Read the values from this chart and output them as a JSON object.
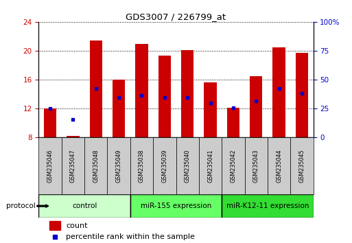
{
  "title": "GDS3007 / 226799_at",
  "samples": [
    "GSM235046",
    "GSM235047",
    "GSM235048",
    "GSM235049",
    "GSM235038",
    "GSM235039",
    "GSM235040",
    "GSM235041",
    "GSM235042",
    "GSM235043",
    "GSM235044",
    "GSM235045"
  ],
  "count_values": [
    12.0,
    8.2,
    21.4,
    16.0,
    20.9,
    19.3,
    20.1,
    15.6,
    12.1,
    16.5,
    20.5,
    19.7
  ],
  "percentile_values": [
    12.0,
    10.5,
    14.8,
    13.5,
    13.8,
    13.5,
    13.5,
    12.8,
    12.1,
    13.0,
    14.8,
    14.1
  ],
  "ylim_left": [
    8,
    24
  ],
  "ylim_right": [
    0,
    100
  ],
  "yticks_left": [
    8,
    12,
    16,
    20,
    24
  ],
  "yticks_right": [
    0,
    25,
    50,
    75,
    100
  ],
  "ytick_labels_right": [
    "0",
    "25",
    "50",
    "75",
    "100%"
  ],
  "bar_color": "#cc0000",
  "percentile_color": "#0000cc",
  "bar_bottom": 8,
  "groups": [
    {
      "label": "control",
      "indices": [
        0,
        1,
        2,
        3
      ],
      "color": "#ccffcc"
    },
    {
      "label": "miR-155 expression",
      "indices": [
        4,
        5,
        6,
        7
      ],
      "color": "#66ff66"
    },
    {
      "label": "miR-K12-11 expression",
      "indices": [
        8,
        9,
        10,
        11
      ],
      "color": "#33dd33"
    }
  ],
  "protocol_label": "protocol",
  "legend_count_label": "count",
  "legend_percentile_label": "percentile rank within the sample",
  "bar_width": 0.55,
  "grid_color": "#000000",
  "background_color": "#ffffff",
  "tick_label_color_left": "#cc0000",
  "tick_label_color_right": "#0000cc",
  "sample_box_color": "#cccccc",
  "figsize": [
    5.13,
    3.54
  ],
  "dpi": 100
}
